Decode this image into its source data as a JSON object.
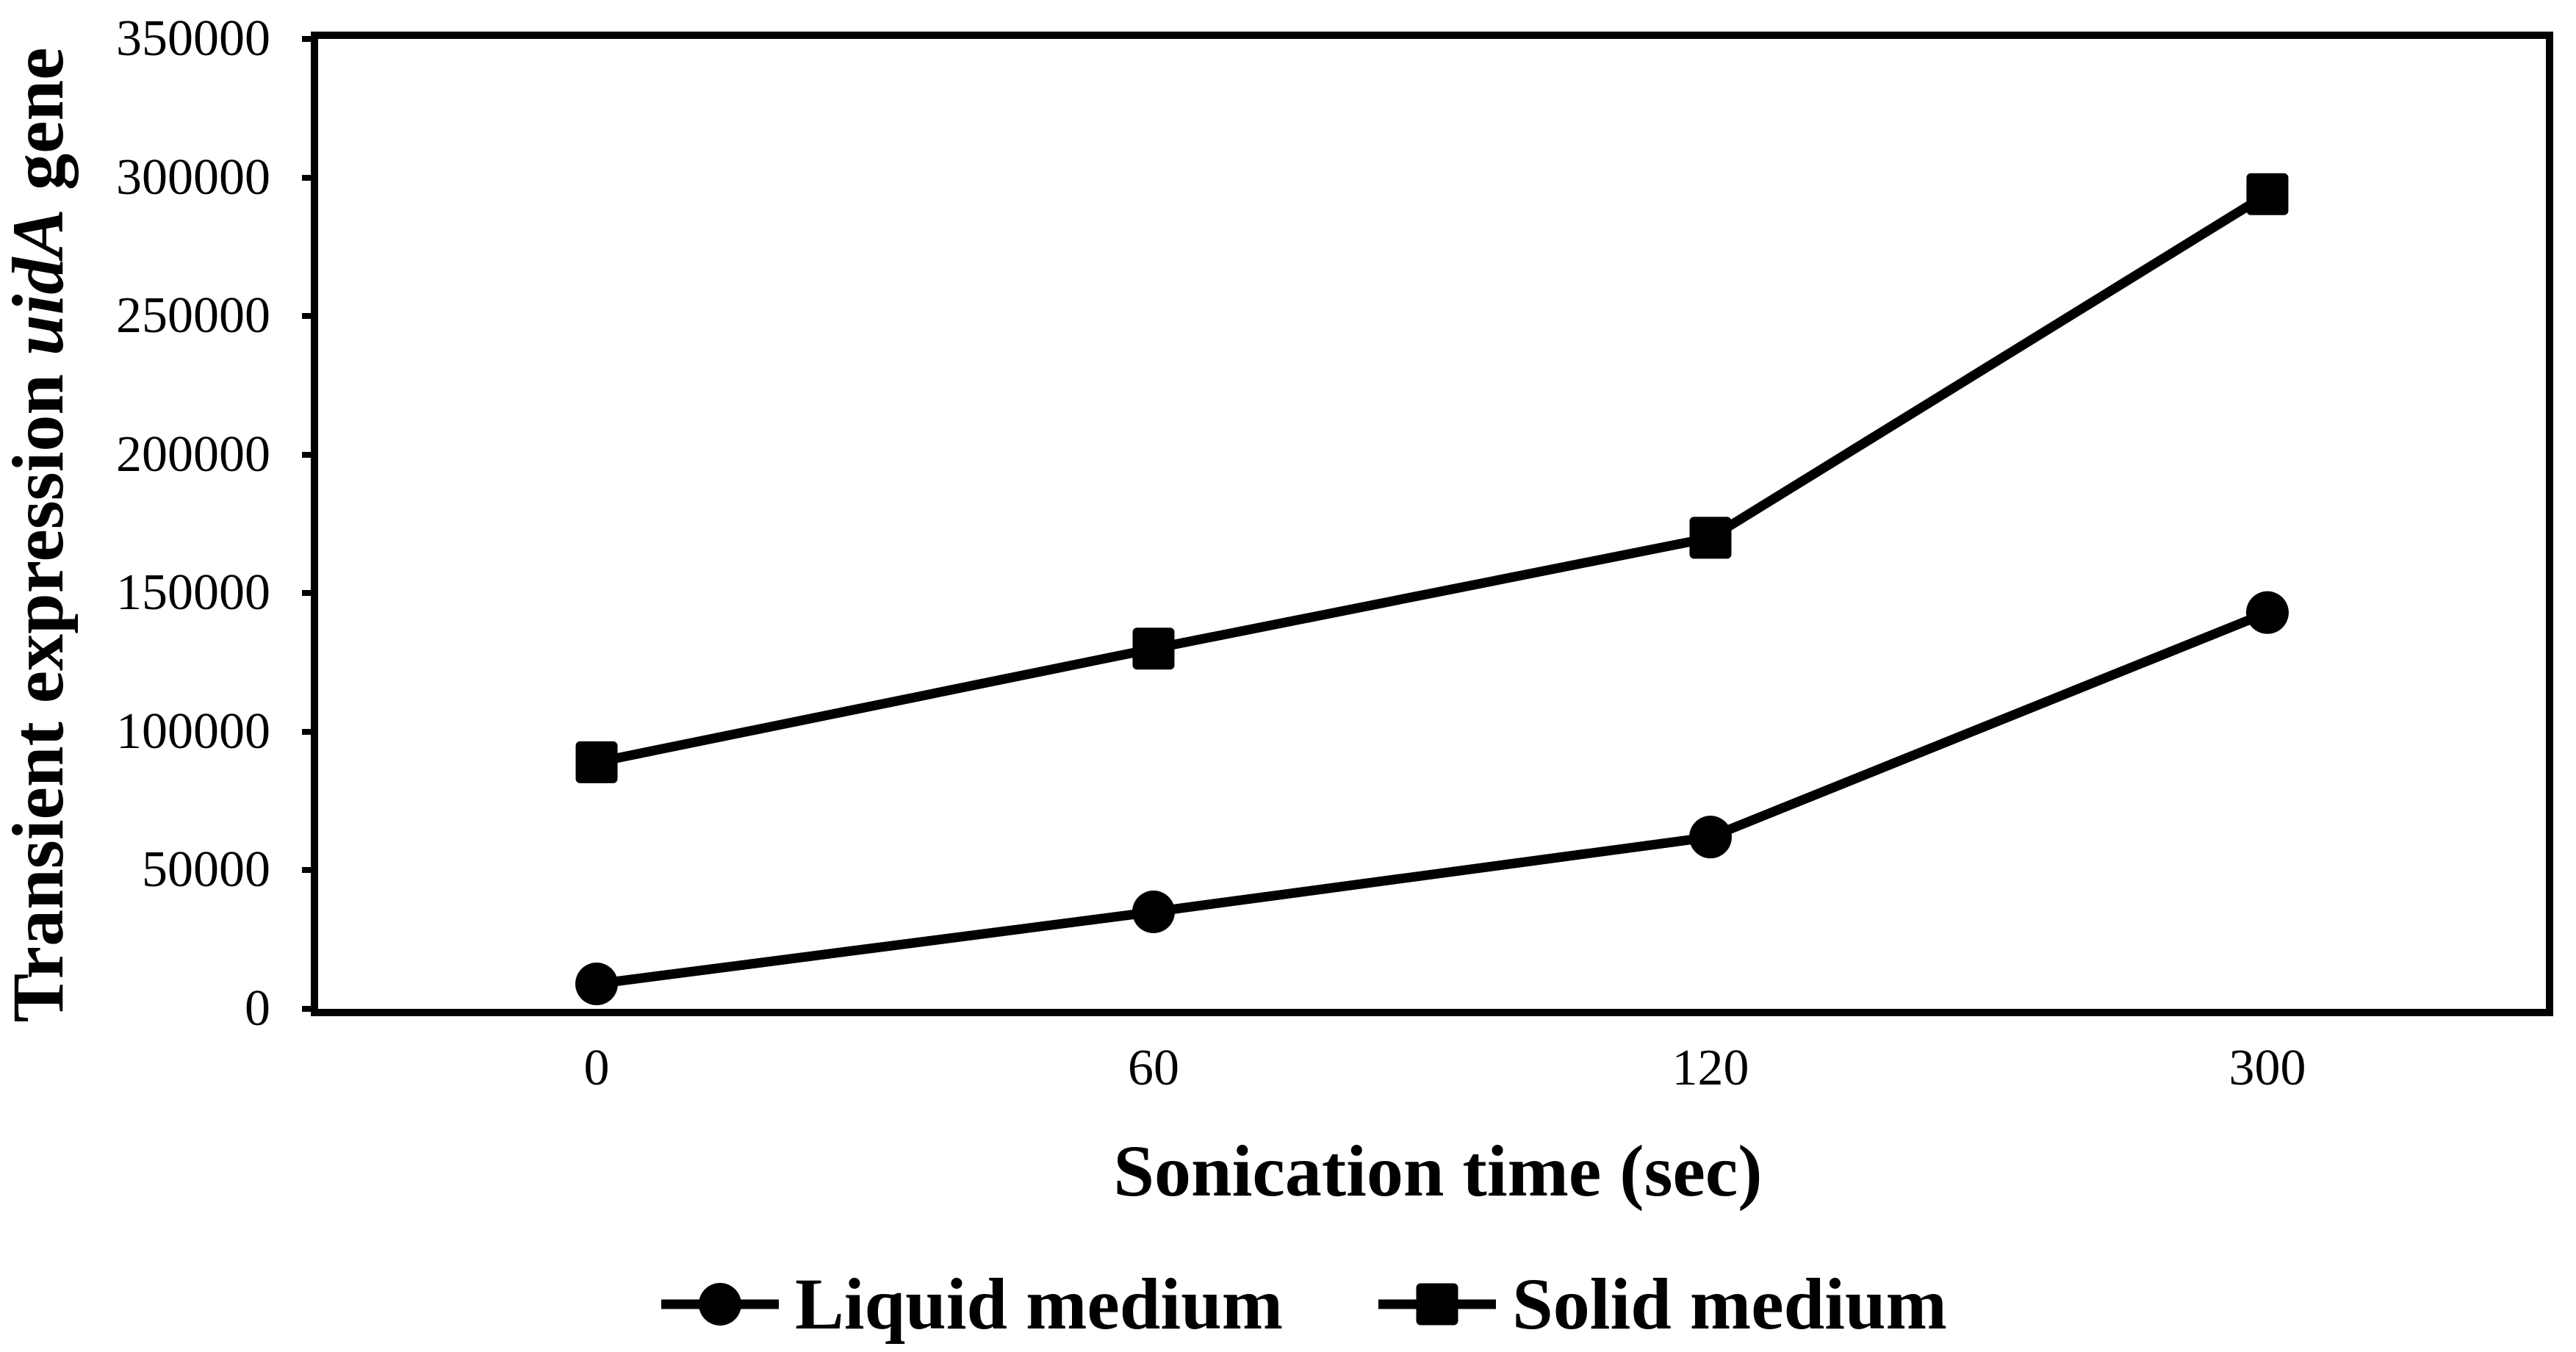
{
  "figure": {
    "background_color": "#ffffff",
    "ink_color": "#000000"
  },
  "chart_data": {
    "type": "line",
    "title": "",
    "xlabel": "Sonication time (sec)",
    "ylabel": "Transient expression uidA gene",
    "ylabel_parts": {
      "prefix": "Transient expression ",
      "italic": "uidA",
      "suffix": " gene"
    },
    "x_axis_type": "category",
    "categories": [
      "0",
      "60",
      "120",
      "300"
    ],
    "series": [
      {
        "name": "Liquid medium",
        "marker": "circle",
        "color": "#000000",
        "values": [
          9000,
          35000,
          62000,
          143000
        ]
      },
      {
        "name": "Solid medium",
        "marker": "square",
        "color": "#000000",
        "values": [
          89000,
          130000,
          170000,
          294000
        ]
      }
    ],
    "ylim": [
      0,
      350000
    ],
    "y_ticks": [
      0,
      50000,
      100000,
      150000,
      200000,
      250000,
      300000,
      350000
    ],
    "grid": "off",
    "legend_position": "bottom"
  }
}
